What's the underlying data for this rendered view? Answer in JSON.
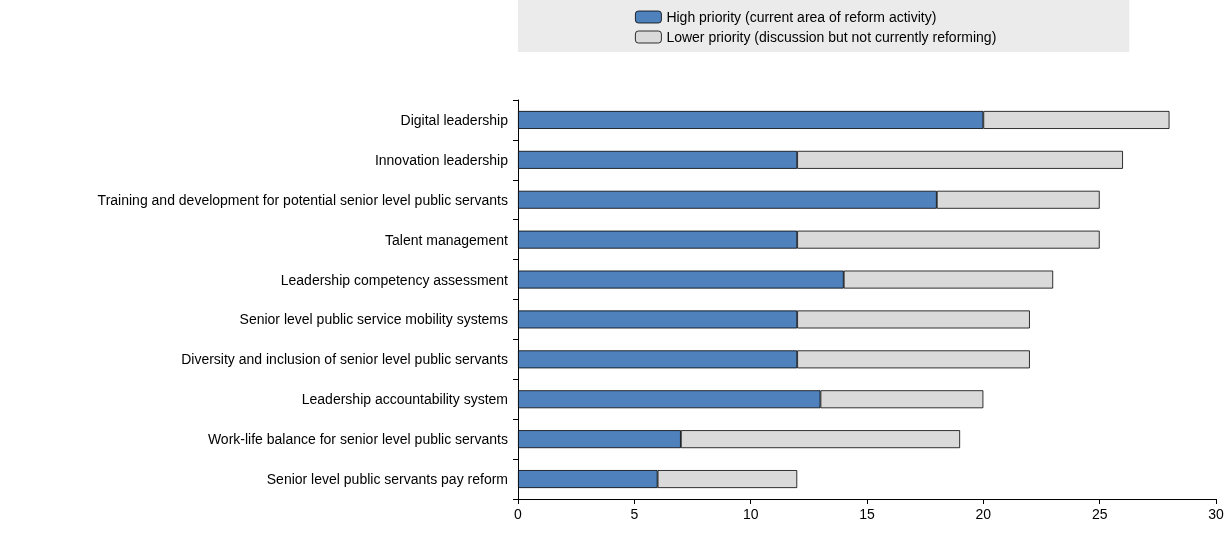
{
  "chart_data": {
    "type": "bar",
    "orientation": "horizontal",
    "stacked": true,
    "legend": "top",
    "grid": false,
    "categories": [
      "Digital leadership",
      "Innovation leadership",
      "Training and development for potential senior level public servants",
      "Talent management",
      "Leadership competency assessment",
      "Senior level public service mobility systems",
      "Diversity and inclusion of senior level public servants",
      "Leadership accountability system",
      "Work-life balance for senior level public servants",
      "Senior level public servants pay reform"
    ],
    "series": [
      {
        "name": "High priority (current area of reform activity)",
        "color": "#4f81bd",
        "values": [
          20,
          12,
          18,
          12,
          14,
          12,
          12,
          13,
          7,
          6
        ]
      },
      {
        "name": "Lower priority (discussion but not currently reforming)",
        "color": "#dadada",
        "values": [
          8,
          14,
          7,
          13,
          9,
          10,
          10,
          7,
          12,
          6
        ]
      }
    ],
    "xlim": [
      0,
      30
    ],
    "xticks": [
      0,
      5,
      10,
      15,
      20,
      25,
      30
    ]
  }
}
